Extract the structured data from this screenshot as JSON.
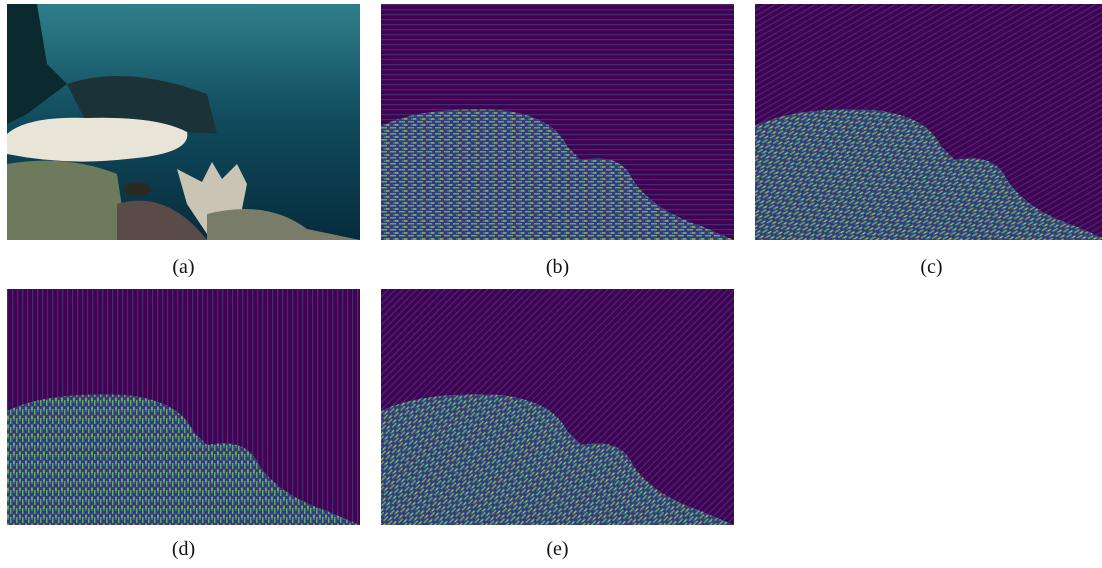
{
  "figure": {
    "subfigures": [
      {
        "label": "(a)"
      },
      {
        "label": "(b)"
      },
      {
        "label": "(c)"
      },
      {
        "label": "(d)"
      },
      {
        "label": "(e)"
      }
    ]
  }
}
